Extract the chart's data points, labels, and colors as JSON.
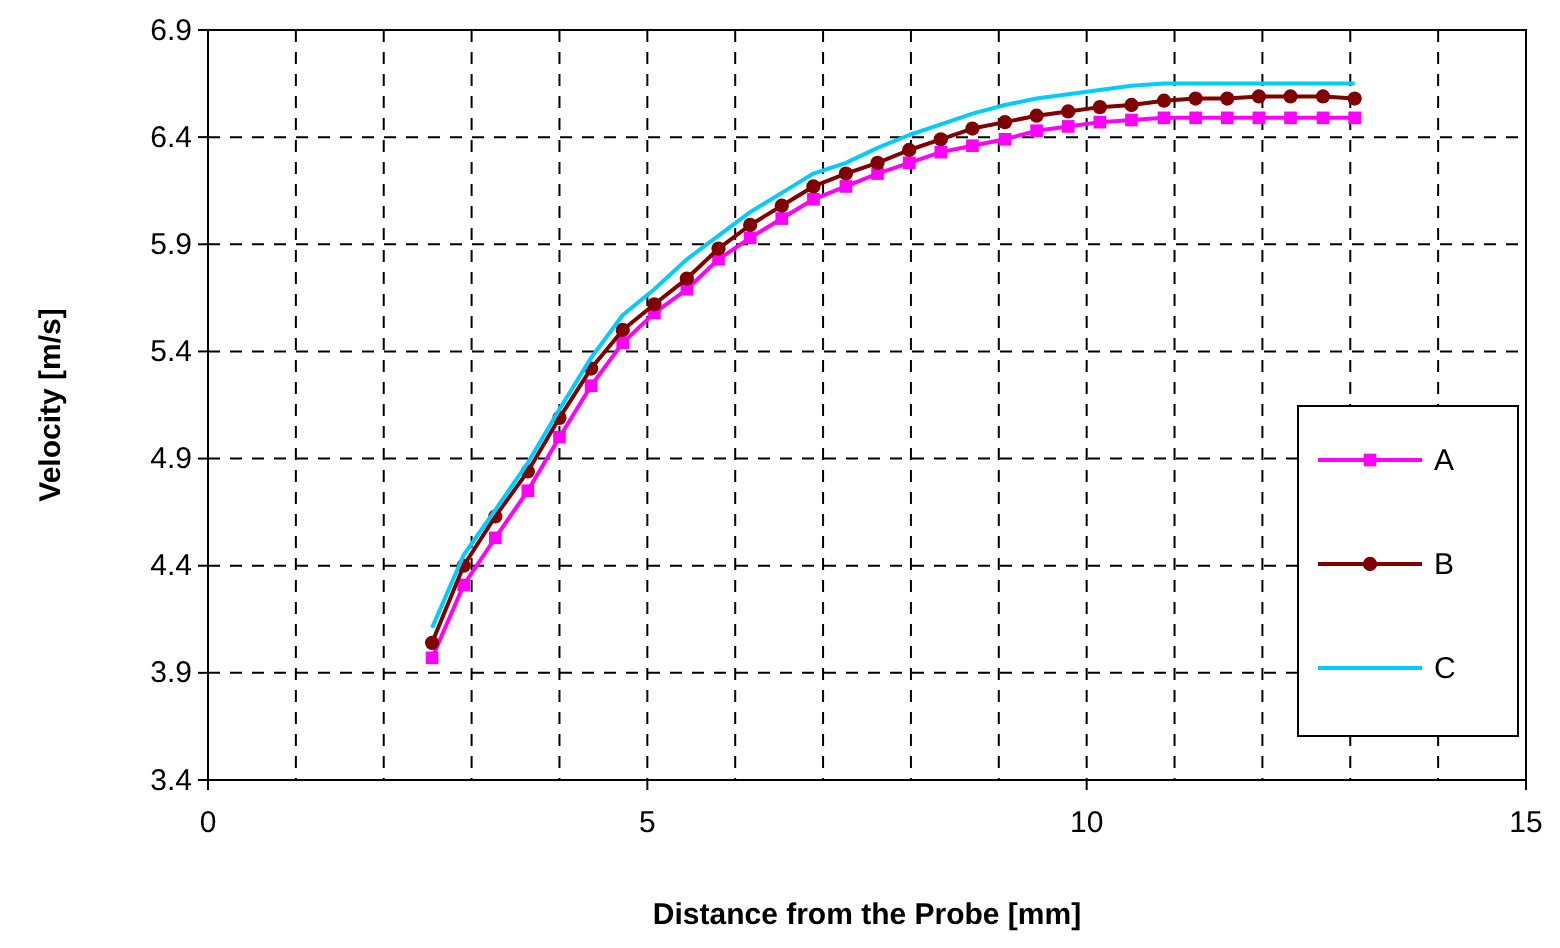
{
  "chart_data": {
    "type": "line",
    "xlabel": "Distance from the Probe [mm]",
    "ylabel": "Velocity [m/s]",
    "x": [
      2.55,
      2.91,
      3.27,
      3.64,
      4.0,
      4.36,
      4.72,
      5.08,
      5.45,
      5.81,
      6.17,
      6.53,
      6.89,
      7.26,
      7.62,
      7.98,
      8.34,
      8.7,
      9.07,
      9.43,
      9.79,
      10.15,
      10.51,
      10.88,
      11.24,
      11.6,
      11.96,
      12.32,
      12.69,
      13.05
    ],
    "series": [
      {
        "name": "A",
        "color": "#ff00ff",
        "marker": "square",
        "values": [
          3.97,
          4.31,
          4.53,
          4.75,
          5.0,
          5.24,
          5.44,
          5.58,
          5.69,
          5.83,
          5.93,
          6.02,
          6.11,
          6.17,
          6.23,
          6.28,
          6.33,
          6.36,
          6.39,
          6.43,
          6.45,
          6.47,
          6.48,
          6.49,
          6.49,
          6.49,
          6.49,
          6.49,
          6.49,
          6.49
        ]
      },
      {
        "name": "B",
        "color": "#800000",
        "marker": "circle",
        "values": [
          4.04,
          4.4,
          4.63,
          4.84,
          5.09,
          5.32,
          5.5,
          5.62,
          5.74,
          5.88,
          5.99,
          6.08,
          6.17,
          6.23,
          6.28,
          6.34,
          6.39,
          6.44,
          6.47,
          6.5,
          6.52,
          6.54,
          6.55,
          6.57,
          6.58,
          6.58,
          6.59,
          6.59,
          6.59,
          6.58
        ]
      },
      {
        "name": "C",
        "color": "#00ccff",
        "marker": "none",
        "values": [
          4.11,
          4.45,
          4.66,
          4.88,
          5.13,
          5.37,
          5.57,
          5.69,
          5.83,
          5.94,
          6.05,
          6.14,
          6.23,
          6.28,
          6.35,
          6.41,
          6.46,
          6.51,
          6.55,
          6.58,
          6.6,
          6.62,
          6.64,
          6.65,
          6.65,
          6.65,
          6.65,
          6.65,
          6.65,
          6.65
        ]
      }
    ],
    "xlim": [
      0,
      15
    ],
    "xticks": [
      0,
      5,
      10,
      15
    ],
    "ylim": [
      3.4,
      6.9
    ],
    "yticks": [
      3.4,
      3.9,
      4.4,
      4.9,
      5.4,
      5.9,
      6.4,
      6.9
    ],
    "grid": true,
    "legend": "bottom right",
    "line_style": "solid"
  }
}
